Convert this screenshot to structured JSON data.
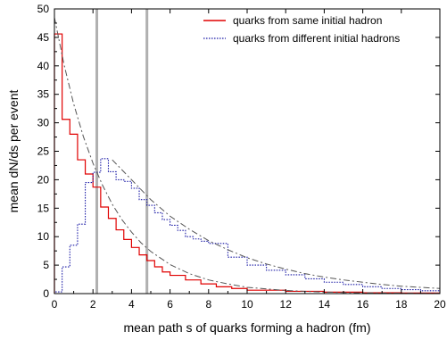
{
  "chart_data": {
    "type": "line",
    "xlabel": "mean path s of quarks forming a hadron (fm)",
    "ylabel": "mean dN/ds per event",
    "xlim": [
      0,
      20
    ],
    "ylim": [
      0,
      50
    ],
    "xticks": [
      0,
      2,
      4,
      6,
      8,
      10,
      12,
      14,
      16,
      18,
      20
    ],
    "yticks": [
      0,
      5,
      10,
      15,
      20,
      25,
      30,
      35,
      40,
      45,
      50
    ],
    "grid": false,
    "legend_position": "top-right",
    "vertical_markers_x": [
      2.2,
      4.8
    ],
    "series": [
      {
        "name": "quarks from same initial hadron",
        "style": "solid-step",
        "color": "#e00000",
        "bin_edges": [
          0,
          0.4,
          0.8,
          1.2,
          1.6,
          2.0,
          2.4,
          2.8,
          3.2,
          3.6,
          4.0,
          4.4,
          4.8,
          5.2,
          5.6,
          6.0,
          6.8,
          7.6,
          8.4,
          9.2,
          10.0,
          12.0,
          14.0,
          16.0,
          18.0,
          20.0
        ],
        "values": [
          45.6,
          30.6,
          28.0,
          23.5,
          21.0,
          18.7,
          15.2,
          13.2,
          11.2,
          9.5,
          8.1,
          6.8,
          5.8,
          4.7,
          3.8,
          3.2,
          2.4,
          1.7,
          1.2,
          0.9,
          0.6,
          0.4,
          0.25,
          0.15,
          0.1
        ]
      },
      {
        "name": "quarks from different initial hadrons",
        "style": "dotted-step",
        "color": "#1a1aa6",
        "bin_edges": [
          0,
          0.4,
          0.8,
          1.2,
          1.6,
          2.0,
          2.4,
          2.8,
          3.2,
          3.6,
          4.0,
          4.4,
          4.8,
          5.2,
          5.6,
          6.0,
          6.4,
          6.8,
          7.2,
          7.6,
          8.0,
          9.0,
          10.0,
          11.0,
          12.0,
          13.0,
          14.0,
          15.0,
          16.0,
          17.0,
          18.0,
          19.0,
          20.0
        ],
        "values": [
          0.3,
          4.7,
          8.5,
          12.2,
          19.5,
          21.3,
          23.7,
          21.4,
          20.0,
          19.7,
          18.5,
          16.5,
          15.5,
          14.2,
          13.0,
          12.0,
          11.1,
          10.0,
          9.6,
          9.2,
          8.8,
          6.4,
          5.0,
          4.1,
          3.3,
          2.6,
          2.0,
          1.6,
          1.2,
          0.9,
          0.7,
          0.5
        ]
      },
      {
        "style": "dashed-fit",
        "color": "#555555",
        "x": [
          0,
          0.5,
          1,
          1.5,
          2,
          2.5,
          3,
          3.5,
          4,
          4.5,
          5,
          6,
          7,
          8,
          9,
          10,
          12,
          14,
          16,
          18,
          20
        ],
        "y": [
          48.5,
          40.2,
          33.3,
          27.6,
          22.9,
          19.0,
          15.7,
          13.0,
          10.8,
          8.9,
          7.4,
          5.1,
          3.5,
          2.4,
          1.7,
          1.1,
          0.55,
          0.26,
          0.13,
          0.06,
          0.03
        ]
      },
      {
        "style": "dashed-fit",
        "color": "#555555",
        "x": [
          3.0,
          4,
          5,
          6,
          7,
          8,
          9,
          10,
          11,
          12,
          13,
          14,
          15,
          16,
          17,
          18,
          19,
          20
        ],
        "y": [
          23.5,
          20.0,
          16.5,
          13.6,
          11.3,
          9.3,
          7.7,
          6.3,
          5.2,
          4.3,
          3.5,
          2.9,
          2.4,
          2.0,
          1.6,
          1.3,
          1.1,
          0.9
        ]
      }
    ]
  }
}
